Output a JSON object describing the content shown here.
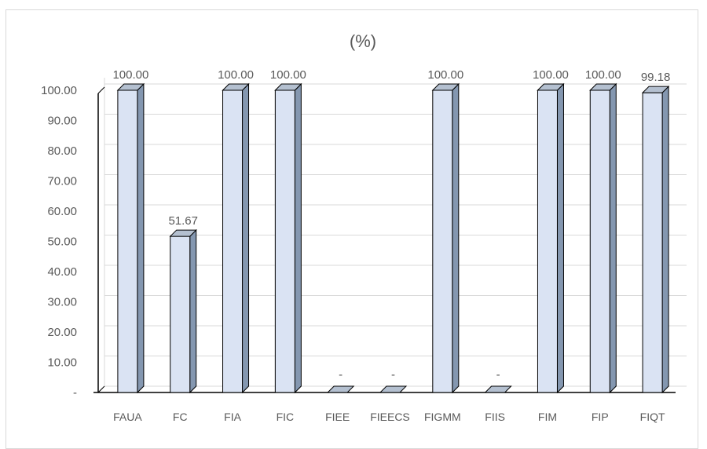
{
  "chart_data": {
    "type": "bar",
    "title": "(%)",
    "categories": [
      "FAUA",
      "FC",
      "FIA",
      "FIC",
      "FIEE",
      "FIEECS",
      "FIGMM",
      "FIIS",
      "FIM",
      "FIP",
      "FIQT"
    ],
    "values": [
      100.0,
      51.67,
      100.0,
      100.0,
      0,
      0,
      100.0,
      0,
      100.0,
      100.0,
      99.18
    ],
    "data_labels": [
      "100.00",
      "51.67",
      "100.00",
      "100.00",
      "-",
      "-",
      "100.00",
      "-",
      "100.00",
      "100.00",
      "99.18"
    ],
    "ylim": [
      0,
      100
    ],
    "y_ticks": [
      0,
      10,
      20,
      30,
      40,
      50,
      60,
      70,
      80,
      90,
      100
    ],
    "y_tick_labels": [
      "-",
      "10.00",
      "20.00",
      "30.00",
      "40.00",
      "50.00",
      "60.00",
      "70.00",
      "80.00",
      "90.00",
      "100.00"
    ],
    "xlabel": "",
    "ylabel": "",
    "grid": true,
    "style": "3d-column",
    "colors": {
      "bar_front": "#dae3f3",
      "bar_side": "#8497b0",
      "bar_top": "#b4c0d0",
      "bar_stroke": "#000000",
      "grid": "#d9d9d9",
      "text": "#595959"
    }
  }
}
